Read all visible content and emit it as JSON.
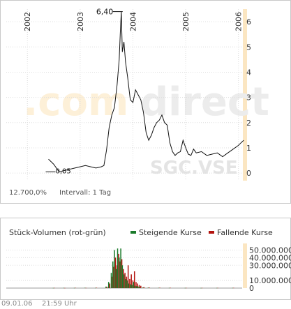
{
  "watermark": {
    "brand_left": ".com",
    "brand_right": "direct",
    "symbol": "SGC.VSE"
  },
  "price_info": {
    "change_text": "12.700,0%",
    "interval_text": "Intervall: 1 Tag"
  },
  "chart_data": [
    {
      "type": "line",
      "title": "",
      "x_ticks": [
        "2002",
        "2003",
        "2004",
        "2005",
        "2006"
      ],
      "y_ticks": [
        "0",
        "1",
        "2",
        "3",
        "4",
        "5",
        "6"
      ],
      "ylim": [
        -0.3,
        6.5
      ],
      "xlim": [
        2001.6,
        2006.15
      ],
      "annotations": [
        {
          "label": "6,40",
          "x": 2003.78,
          "y": 6.4
        },
        {
          "label": "0,05",
          "x": 2002.4,
          "y": 0.05
        }
      ],
      "x": [
        2002.4,
        2002.45,
        2002.5,
        2002.55,
        2002.6,
        2002.7,
        2002.8,
        2002.9,
        2003.0,
        2003.1,
        2003.2,
        2003.3,
        2003.4,
        2003.45,
        2003.5,
        2003.55,
        2003.6,
        2003.65,
        2003.7,
        2003.74,
        2003.76,
        2003.78,
        2003.8,
        2003.83,
        2003.86,
        2003.9,
        2003.95,
        2004.0,
        2004.05,
        2004.1,
        2004.15,
        2004.2,
        2004.25,
        2004.3,
        2004.35,
        2004.4,
        2004.45,
        2004.5,
        2004.55,
        2004.6,
        2004.65,
        2004.7,
        2004.75,
        2004.8,
        2004.85,
        2004.9,
        2004.95,
        2005.0,
        2005.05,
        2005.1,
        2005.15,
        2005.2,
        2005.3,
        2005.4,
        2005.5,
        2005.6,
        2005.7,
        2005.8,
        2005.9,
        2006.0,
        2006.05,
        2006.1
      ],
      "y": [
        0.55,
        0.45,
        0.35,
        0.2,
        0.05,
        0.1,
        0.15,
        0.2,
        0.25,
        0.3,
        0.25,
        0.2,
        0.25,
        0.3,
        0.9,
        1.8,
        2.3,
        2.6,
        3.5,
        4.5,
        5.5,
        6.4,
        4.8,
        5.2,
        4.4,
        3.8,
        2.9,
        2.8,
        3.3,
        3.1,
        2.9,
        2.4,
        1.6,
        1.3,
        1.5,
        1.8,
        2.0,
        2.1,
        2.3,
        2.0,
        1.9,
        1.2,
        0.85,
        0.7,
        0.8,
        0.85,
        1.3,
        1.0,
        0.75,
        0.7,
        0.95,
        0.8,
        0.85,
        0.7,
        0.75,
        0.8,
        0.65,
        0.8,
        0.95,
        1.1,
        1.2,
        1.3
      ]
    },
    {
      "type": "bar",
      "title": "Stück-Volumen (rot-grün)",
      "legend": [
        {
          "name": "Steigende Kurse",
          "color": "#1a7a2a"
        },
        {
          "name": "Fallende Kurse",
          "color": "#b3140f"
        }
      ],
      "y_ticks": [
        "0",
        "10.000.000",
        "30.000.000",
        "40.000.000",
        "50.000.000"
      ],
      "ylim": [
        0,
        55000000
      ],
      "x": [
        2002.5,
        2002.7,
        2002.9,
        2003.1,
        2003.3,
        2003.5,
        2003.55,
        2003.6,
        2003.63,
        2003.66,
        2003.69,
        2003.72,
        2003.75,
        2003.78,
        2003.81,
        2003.84,
        2003.87,
        2003.9,
        2003.93,
        2003.96,
        2003.99,
        2004.02,
        2004.05,
        2004.08,
        2004.11,
        2004.14,
        2004.2,
        2004.3,
        2004.5,
        2004.7,
        2005.0,
        2005.3,
        2005.6,
        2005.9
      ],
      "up": [
        200000,
        300000,
        250000,
        400000,
        300000,
        2000000,
        8000000,
        20000000,
        35000000,
        50000000,
        25000000,
        52000000,
        40000000,
        52000000,
        30000000,
        18000000,
        12000000,
        10000000,
        6000000,
        5000000,
        4000000,
        8000000,
        3000000,
        2500000,
        2000000,
        1500000,
        800000,
        600000,
        400000,
        300000,
        250000,
        200000,
        250000,
        300000
      ],
      "down": [
        300000,
        200000,
        400000,
        300000,
        500000,
        1500000,
        6000000,
        15000000,
        28000000,
        40000000,
        30000000,
        45000000,
        35000000,
        38000000,
        25000000,
        20000000,
        15000000,
        30000000,
        12000000,
        18000000,
        10000000,
        22000000,
        8000000,
        6000000,
        4000000,
        3000000,
        1200000,
        700000,
        500000,
        400000,
        300000,
        300000,
        300000,
        350000
      ]
    }
  ],
  "footer": {
    "date": "09.01.06",
    "time": "21:59 Uhr"
  }
}
